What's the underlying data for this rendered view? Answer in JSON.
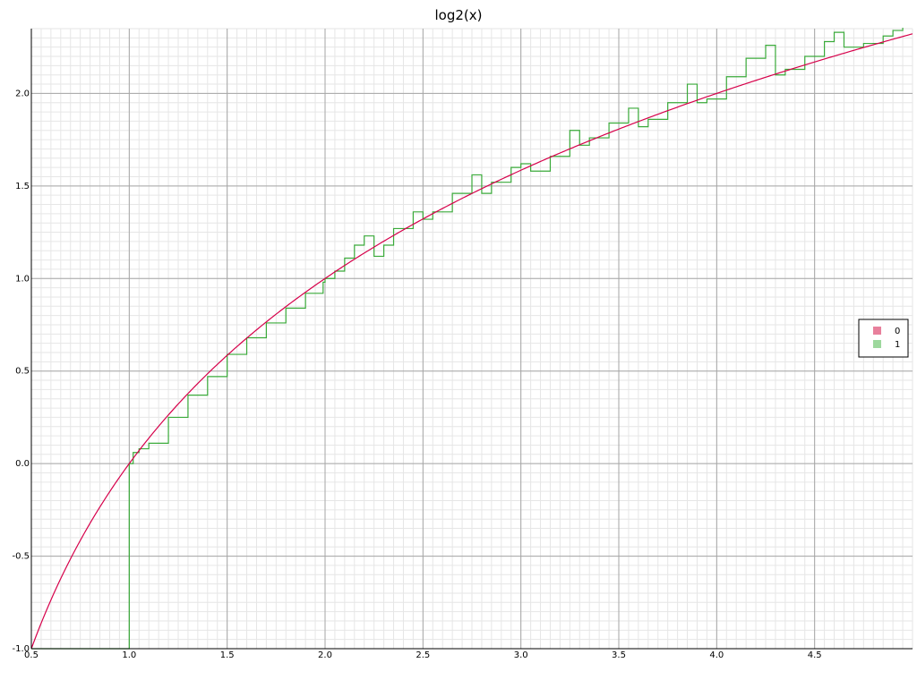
{
  "chart_data": {
    "type": "line",
    "title": "log2(x)",
    "xlabel": "",
    "ylabel": "",
    "xlim": [
      0.5,
      5.0
    ],
    "ylim": [
      -1.0,
      2.35
    ],
    "x_ticks": [
      "0.5",
      "1.0",
      "1.5",
      "2.0",
      "2.5",
      "3.0",
      "3.5",
      "4.0",
      "4.5"
    ],
    "y_ticks": [
      "-1.0",
      "-0.5",
      "0.0",
      "0.5",
      "1.0",
      "1.5",
      "2.0"
    ],
    "grid": true,
    "legend": {
      "position": "right",
      "entries": [
        "0",
        "1"
      ]
    },
    "series": [
      {
        "name": "0",
        "color": "#d6004a",
        "function": "log2(x)",
        "x": [
          0.5,
          0.75,
          1.0,
          1.25,
          1.5,
          1.75,
          2.0,
          2.5,
          3.0,
          3.5,
          4.0,
          4.5,
          5.0
        ],
        "values": [
          -1.0,
          -0.415,
          0.0,
          0.322,
          0.585,
          0.807,
          1.0,
          1.322,
          1.585,
          1.807,
          2.0,
          2.17,
          2.322
        ]
      },
      {
        "name": "1",
        "color": "#3aaa3a",
        "style": "step",
        "x": [
          0.5,
          0.99,
          1.0,
          1.02,
          1.05,
          1.1,
          1.2,
          1.3,
          1.4,
          1.5,
          1.6,
          1.7,
          1.8,
          1.9,
          1.99,
          2.0,
          2.05,
          2.1,
          2.15,
          2.2,
          2.25,
          2.3,
          2.35,
          2.45,
          2.5,
          2.55,
          2.65,
          2.75,
          2.8,
          2.85,
          2.95,
          3.0,
          3.05,
          3.15,
          3.25,
          3.3,
          3.35,
          3.45,
          3.55,
          3.6,
          3.65,
          3.75,
          3.85,
          3.9,
          3.95,
          4.05,
          4.15,
          4.25,
          4.3,
          4.35,
          4.45,
          4.55,
          4.6,
          4.65,
          4.75,
          4.85,
          4.9,
          4.95,
          5.0
        ],
        "values": [
          -1.0,
          -1.0,
          0.0,
          0.06,
          0.08,
          0.11,
          0.25,
          0.37,
          0.47,
          0.59,
          0.68,
          0.76,
          0.84,
          0.92,
          0.98,
          1.0,
          1.04,
          1.11,
          1.18,
          1.23,
          1.12,
          1.18,
          1.27,
          1.36,
          1.32,
          1.36,
          1.46,
          1.56,
          1.46,
          1.52,
          1.6,
          1.62,
          1.58,
          1.66,
          1.8,
          1.72,
          1.76,
          1.84,
          1.92,
          1.82,
          1.86,
          1.95,
          2.05,
          1.95,
          1.97,
          2.09,
          2.19,
          2.26,
          2.1,
          2.13,
          2.2,
          2.28,
          2.33,
          2.25,
          2.27,
          2.31,
          2.34,
          2.36,
          2.38
        ]
      }
    ]
  }
}
